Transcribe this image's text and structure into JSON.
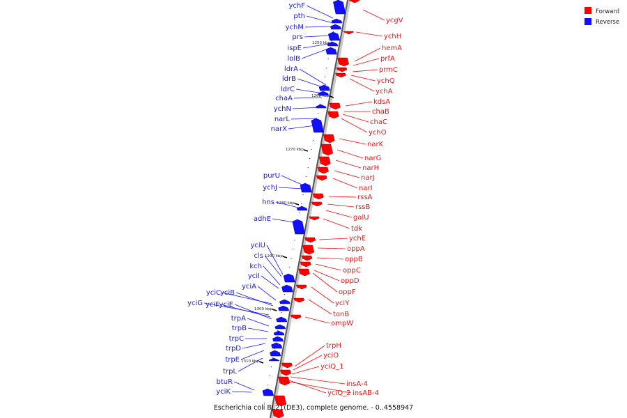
{
  "caption": "Escherichia coli BL21(DE3), complete genome. - 0..4558947",
  "legend": [
    {
      "label": "Forward",
      "color": "#ff0000"
    },
    {
      "label": "Reverse",
      "color": "#1010ff"
    }
  ],
  "ticks": [
    "1250 kbp",
    "1260 kbp",
    "1270 kbp",
    "1280 kbp",
    "1290 kbp",
    "1300 kbp",
    "1310 kbp"
  ],
  "reverse_genes": [
    "ychF",
    "pth",
    "ychM",
    "prs",
    "ispE",
    "lolB",
    "ldrA",
    "ldrB",
    "ldrC",
    "chaA",
    "ychN",
    "narL",
    "narX",
    "purU",
    "ychJ",
    "hns",
    "adhE",
    "yciU",
    "cls",
    "kch",
    "yciI",
    "yciA",
    "yciC",
    "yciB",
    "yciG",
    "yciF",
    "yciE",
    "trpA",
    "trpB",
    "trpC",
    "trpD",
    "trpE",
    "trpL",
    "btuR",
    "yciK"
  ],
  "forward_genes": [
    "ycgV",
    "ychH",
    "hemA",
    "prfA",
    "prmC",
    "ychQ",
    "ychA",
    "kdsA",
    "chaB",
    "chaC",
    "ychO",
    "narK",
    "narG",
    "narH",
    "narJ",
    "narI",
    "rssA",
    "rssB",
    "galU",
    "tdk",
    "ychE",
    "oppA",
    "oppB",
    "oppC",
    "oppD",
    "oppF",
    "yciY",
    "tonB",
    "ompW",
    "trpH",
    "yciO",
    "yciQ_1",
    "insA-4",
    "yciQ_2",
    "insAB-4"
  ]
}
